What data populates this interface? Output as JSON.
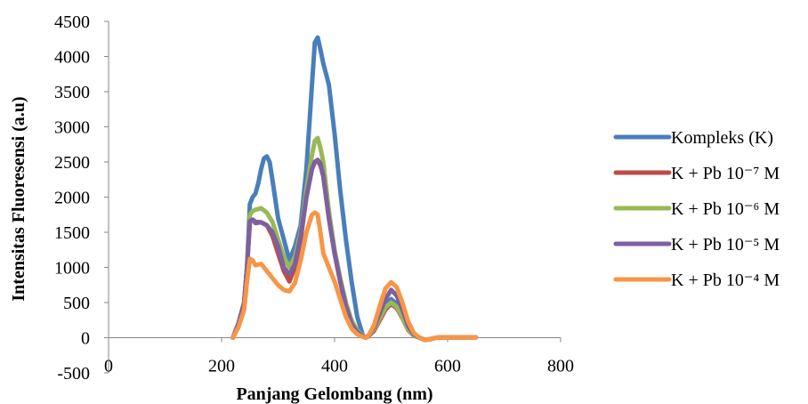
{
  "chart_data": {
    "type": "line",
    "title": "",
    "xlabel": "Panjang Gelombang (nm)",
    "ylabel": "Intensitas Fluoresensi (a.u)",
    "xlim": [
      0,
      800
    ],
    "ylim": [
      -500,
      4500
    ],
    "xticks": [
      0,
      200,
      400,
      600,
      800
    ],
    "yticks": [
      -500,
      0,
      500,
      1000,
      1500,
      2000,
      2500,
      3000,
      3500,
      4000,
      4500
    ],
    "xtick_labels": [
      "0",
      "200",
      "400",
      "600",
      "800"
    ],
    "ytick_labels": [
      "-500",
      "0",
      "500",
      "1000",
      "1500",
      "2000",
      "2500",
      "3000",
      "3500",
      "4000",
      "4500"
    ],
    "grid": false,
    "legend_position": "right",
    "series": [
      {
        "name": "Kompleks (K)",
        "color": "#4A7EBB",
        "x": [
          220,
          230,
          240,
          245,
          250,
          255,
          260,
          265,
          270,
          275,
          280,
          285,
          290,
          300,
          310,
          320,
          330,
          340,
          350,
          360,
          365,
          370,
          375,
          380,
          390,
          400,
          410,
          420,
          430,
          440,
          450,
          455,
          460,
          470,
          480,
          490,
          500,
          510,
          520,
          530,
          540,
          550,
          560,
          570,
          580,
          590,
          600,
          610,
          620,
          630,
          640,
          650
        ],
        "y": [
          0,
          200,
          500,
          1000,
          1900,
          2000,
          2050,
          2200,
          2400,
          2550,
          2580,
          2500,
          2250,
          1700,
          1400,
          1100,
          1300,
          1600,
          2400,
          3600,
          4200,
          4270,
          4100,
          3900,
          3600,
          2900,
          2100,
          1400,
          800,
          300,
          30,
          0,
          30,
          100,
          300,
          480,
          550,
          480,
          300,
          120,
          30,
          0,
          -30,
          -20,
          0,
          5,
          5,
          5,
          5,
          5,
          5,
          5
        ]
      },
      {
        "name": "K + Pb 10⁻⁷ M",
        "color": "#BE4B48",
        "x": [
          220,
          230,
          240,
          245,
          250,
          255,
          260,
          270,
          280,
          290,
          300,
          310,
          320,
          330,
          340,
          350,
          360,
          365,
          370,
          375,
          380,
          390,
          400,
          410,
          420,
          430,
          440,
          450,
          455,
          460,
          470,
          480,
          490,
          500,
          510,
          520,
          530,
          540,
          550,
          560,
          570,
          580,
          590,
          600,
          610,
          620,
          630,
          640,
          650
        ],
        "y": [
          0,
          200,
          500,
          1000,
          1650,
          1680,
          1650,
          1640,
          1600,
          1450,
          1200,
          950,
          800,
          1000,
          1400,
          2000,
          2400,
          2500,
          2520,
          2450,
          2300,
          1700,
          1200,
          800,
          450,
          200,
          80,
          20,
          0,
          20,
          100,
          250,
          400,
          480,
          420,
          280,
          110,
          30,
          0,
          -30,
          -20,
          0,
          5,
          5,
          5,
          5,
          5,
          5,
          5
        ]
      },
      {
        "name": "K + Pb 10⁻⁶ M",
        "color": "#98B954",
        "x": [
          220,
          230,
          240,
          245,
          250,
          255,
          260,
          270,
          280,
          290,
          300,
          310,
          320,
          330,
          340,
          350,
          360,
          365,
          370,
          375,
          380,
          390,
          400,
          410,
          420,
          430,
          440,
          450,
          455,
          460,
          470,
          480,
          490,
          500,
          510,
          520,
          530,
          540,
          550,
          560,
          570,
          580,
          590,
          600,
          610,
          620,
          630,
          640,
          650
        ],
        "y": [
          0,
          200,
          500,
          1000,
          1750,
          1800,
          1820,
          1840,
          1780,
          1650,
          1400,
          1150,
          1000,
          1150,
          1500,
          2100,
          2600,
          2800,
          2840,
          2700,
          2500,
          1800,
          1250,
          850,
          500,
          250,
          100,
          30,
          0,
          30,
          120,
          280,
          430,
          500,
          440,
          290,
          120,
          30,
          0,
          -30,
          -20,
          0,
          5,
          5,
          5,
          5,
          5,
          5,
          5
        ]
      },
      {
        "name": "K + Pb 10⁻⁵ M",
        "color": "#7D60A0",
        "x": [
          220,
          230,
          240,
          245,
          250,
          255,
          260,
          270,
          280,
          290,
          300,
          310,
          320,
          330,
          340,
          350,
          360,
          365,
          370,
          375,
          380,
          390,
          400,
          410,
          420,
          430,
          440,
          450,
          455,
          460,
          470,
          480,
          490,
          500,
          510,
          520,
          530,
          540,
          550,
          560,
          570,
          580,
          590,
          600,
          610,
          620,
          630,
          640,
          650
        ],
        "y": [
          0,
          200,
          500,
          1000,
          1660,
          1680,
          1630,
          1640,
          1600,
          1500,
          1300,
          1000,
          900,
          1050,
          1450,
          2000,
          2400,
          2500,
          2530,
          2480,
          2300,
          1700,
          1200,
          800,
          450,
          200,
          80,
          20,
          0,
          30,
          150,
          350,
          550,
          680,
          600,
          400,
          170,
          50,
          0,
          -30,
          -20,
          0,
          5,
          5,
          5,
          5,
          5,
          5,
          5
        ]
      },
      {
        "name": "K + Pb 10⁻⁴ M",
        "color": "#F79646",
        "x": [
          220,
          230,
          240,
          245,
          250,
          255,
          260,
          270,
          280,
          290,
          300,
          310,
          320,
          330,
          340,
          350,
          360,
          365,
          370,
          375,
          380,
          390,
          400,
          410,
          420,
          430,
          440,
          450,
          455,
          460,
          470,
          480,
          490,
          500,
          510,
          520,
          530,
          540,
          550,
          560,
          570,
          580,
          590,
          600,
          610,
          620,
          630,
          640,
          650
        ],
        "y": [
          0,
          150,
          400,
          800,
          1120,
          1100,
          1030,
          1050,
          950,
          850,
          750,
          680,
          660,
          780,
          1100,
          1500,
          1750,
          1780,
          1750,
          1500,
          1200,
          1000,
          800,
          550,
          300,
          130,
          50,
          10,
          0,
          30,
          180,
          450,
          700,
          790,
          720,
          500,
          230,
          70,
          0,
          -30,
          -20,
          0,
          5,
          5,
          5,
          5,
          5,
          5,
          5
        ]
      }
    ]
  }
}
